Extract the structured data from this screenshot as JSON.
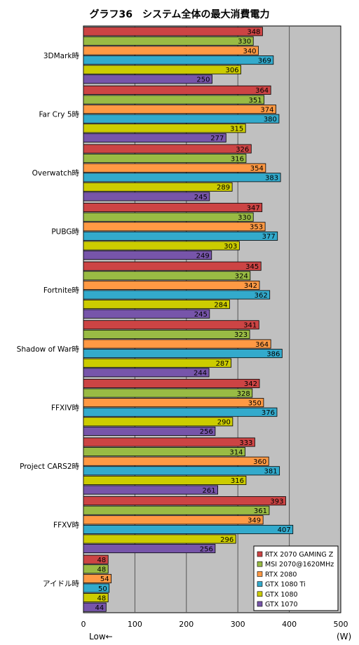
{
  "chart_data": {
    "type": "bar",
    "orientation": "horizontal",
    "title": "グラフ36　システム全体の最大消費電力",
    "xlabel": "(W)",
    "x_direction_note": "Low←",
    "xlim": [
      0,
      500
    ],
    "xticks": [
      0,
      100,
      200,
      300,
      400,
      500
    ],
    "grid": true,
    "legend_position": "bottom-right",
    "categories": [
      "3DMark時",
      "Far Cry 5時",
      "Overwatch時",
      "PUBG時",
      "Fortnite時",
      "Shadow of War時",
      "FFXIV時",
      "Project CARS2時",
      "FFXV時",
      "アイドル時"
    ],
    "series": [
      {
        "name": "RTX 2070 GAMING Z",
        "color": "#cc4444",
        "values": [
          348,
          364,
          326,
          347,
          345,
          341,
          342,
          333,
          393,
          48
        ]
      },
      {
        "name": "MSI 2070@1620MHz",
        "color": "#99bb44",
        "values": [
          330,
          351,
          316,
          330,
          324,
          323,
          328,
          314,
          361,
          48
        ]
      },
      {
        "name": "RTX 2080",
        "color": "#ff9944",
        "values": [
          340,
          374,
          354,
          353,
          342,
          364,
          350,
          360,
          349,
          54
        ]
      },
      {
        "name": "GTX 1080 Ti",
        "color": "#33aacc",
        "values": [
          369,
          380,
          383,
          377,
          362,
          386,
          376,
          381,
          407,
          50
        ]
      },
      {
        "name": "GTX 1080",
        "color": "#cccc00",
        "values": [
          306,
          315,
          289,
          303,
          284,
          287,
          290,
          316,
          296,
          48
        ]
      },
      {
        "name": "GTX 1070",
        "color": "#7755aa",
        "values": [
          250,
          277,
          245,
          249,
          245,
          244,
          256,
          261,
          256,
          44
        ]
      }
    ]
  }
}
